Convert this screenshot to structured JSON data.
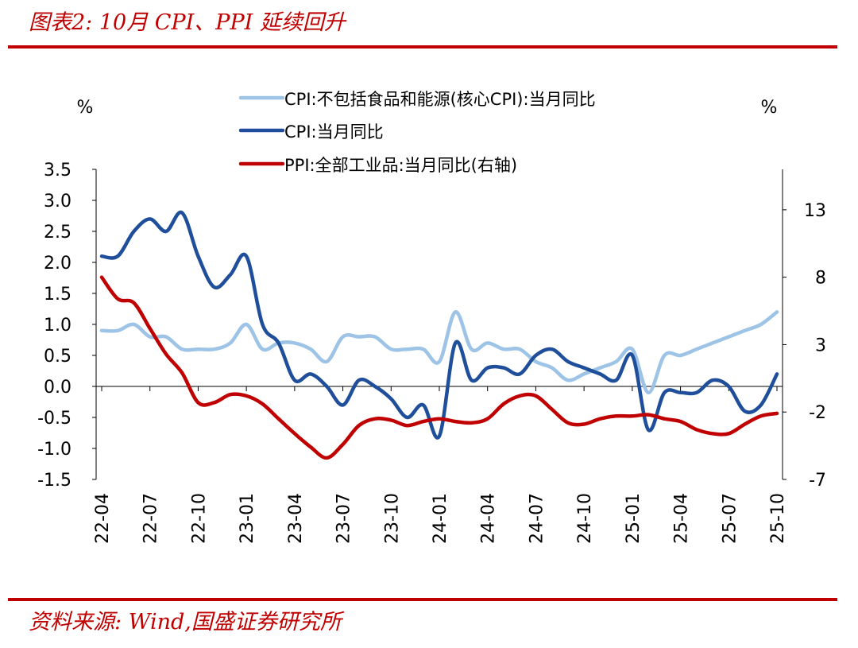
{
  "figure": {
    "title": "图表2: 10月 CPI、PPI 延续回升",
    "source": "资料来源: Wind,国盛证券研究所",
    "accent_color": "#c00000"
  },
  "chart_data": {
    "type": "line",
    "left_unit": "%",
    "right_unit": "%",
    "left_axis": {
      "range": [
        -1.5,
        3.5
      ],
      "ticks": [
        "-1.5",
        "-1.0",
        "-0.5",
        "0.0",
        "0.5",
        "1.0",
        "1.5",
        "2.0",
        "2.5",
        "3.0",
        "3.5"
      ]
    },
    "right_axis": {
      "range": [
        -7,
        16
      ],
      "ticks": [
        "-7",
        "-2",
        "3",
        "8",
        "13"
      ]
    },
    "x_labels": [
      "22-04",
      "22-07",
      "22-10",
      "23-01",
      "23-04",
      "23-07",
      "23-10",
      "24-01",
      "24-04",
      "24-07",
      "24-10",
      "25-01",
      "25-04",
      "25-07",
      "25-10"
    ],
    "months": [
      "22-04",
      "22-05",
      "22-06",
      "22-07",
      "22-08",
      "22-09",
      "22-10",
      "22-11",
      "22-12",
      "23-01",
      "23-02",
      "23-03",
      "23-04",
      "23-05",
      "23-06",
      "23-07",
      "23-08",
      "23-09",
      "23-10",
      "23-11",
      "23-12",
      "24-01",
      "24-02",
      "24-03",
      "24-04",
      "24-05",
      "24-06",
      "24-07",
      "24-08",
      "24-09",
      "24-10",
      "24-11",
      "24-12",
      "25-01",
      "25-02",
      "25-03",
      "25-04",
      "25-05",
      "25-06",
      "25-07",
      "25-08",
      "25-09",
      "25-10"
    ],
    "series": [
      {
        "name": "CPI:不包括食品和能源(核心CPI):当月同比",
        "axis": "left",
        "color": "#9dc3e6",
        "values": [
          0.9,
          0.9,
          1.0,
          0.8,
          0.8,
          0.6,
          0.6,
          0.6,
          0.7,
          1.0,
          0.6,
          0.7,
          0.7,
          0.6,
          0.4,
          0.8,
          0.8,
          0.8,
          0.6,
          0.6,
          0.6,
          0.4,
          1.2,
          0.6,
          0.7,
          0.6,
          0.6,
          0.4,
          0.3,
          0.1,
          0.2,
          0.3,
          0.4,
          0.6,
          -0.1,
          0.5,
          0.5,
          0.6,
          0.7,
          0.8,
          0.9,
          1.0,
          1.2
        ]
      },
      {
        "name": "CPI:当月同比",
        "axis": "left",
        "color": "#1f4e9b",
        "values": [
          2.1,
          2.1,
          2.5,
          2.7,
          2.5,
          2.8,
          2.1,
          1.6,
          1.8,
          2.1,
          1.0,
          0.7,
          0.1,
          0.2,
          0.0,
          -0.3,
          0.1,
          0.0,
          -0.2,
          -0.5,
          -0.3,
          -0.8,
          0.7,
          0.1,
          0.3,
          0.3,
          0.2,
          0.5,
          0.6,
          0.4,
          0.3,
          0.2,
          0.1,
          0.5,
          -0.7,
          -0.1,
          -0.1,
          -0.1,
          0.1,
          0.0,
          -0.4,
          -0.3,
          0.2
        ]
      },
      {
        "name": "PPI:全部工业品:当月同比(右轴)",
        "axis": "right",
        "color": "#c00000",
        "values": [
          8.0,
          6.4,
          6.1,
          4.2,
          2.3,
          0.9,
          -1.3,
          -1.3,
          -0.7,
          -0.8,
          -1.4,
          -2.5,
          -3.6,
          -4.6,
          -5.4,
          -4.4,
          -3.0,
          -2.5,
          -2.6,
          -3.0,
          -2.7,
          -2.5,
          -2.7,
          -2.8,
          -2.5,
          -1.4,
          -0.8,
          -0.8,
          -1.8,
          -2.8,
          -2.9,
          -2.5,
          -2.3,
          -2.3,
          -2.2,
          -2.5,
          -2.7,
          -3.3,
          -3.6,
          -3.6,
          -2.9,
          -2.3,
          -2.1
        ]
      }
    ],
    "legend_placement": "top-center"
  }
}
